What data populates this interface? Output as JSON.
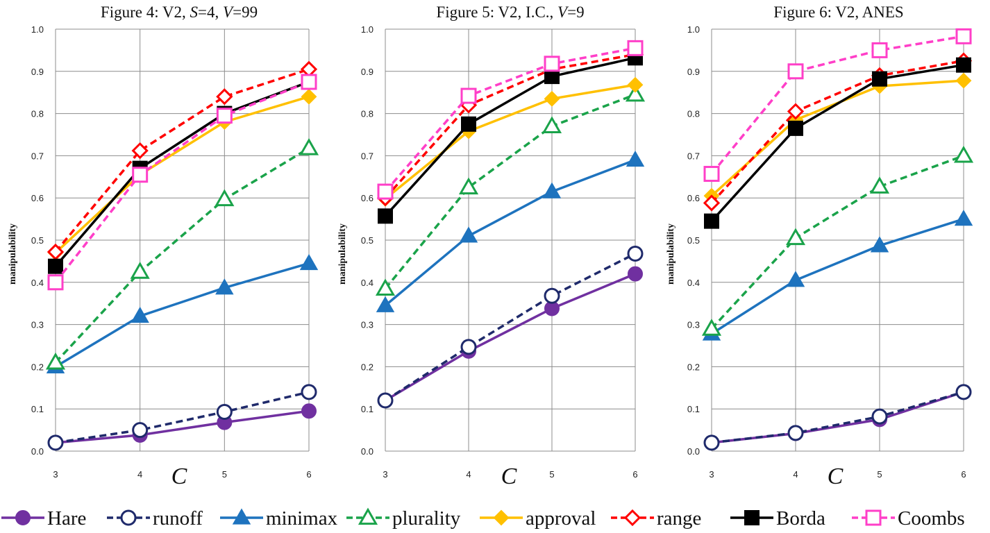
{
  "colors": {
    "Hare": "#7030A0",
    "runoff": "#1F2A6B",
    "minimax": "#1E73BE",
    "plurality": "#1AA34A",
    "approval": "#FFC000",
    "range": "#FF0000",
    "Borda": "#000000",
    "Coombs": "#FF3FC8"
  },
  "chart_data": [
    {
      "type": "line",
      "title": "Figure 4: V2, S=4, V=99",
      "title_parts": [
        "Figure 4: V2, ",
        "S",
        "=4, ",
        "V",
        "=99"
      ],
      "xlabel": "C",
      "ylabel": "manipulability",
      "x": [
        3,
        4,
        5,
        6
      ],
      "x_tick_labels": [
        "3",
        "4",
        "5",
        "6"
      ],
      "y_tick_labels": [
        "0.0",
        "0.1",
        "0.2",
        "0.3",
        "0.4",
        "0.5",
        "0.6",
        "0.7",
        "0.8",
        "0.9",
        "1.0"
      ],
      "ylim": [
        0,
        1
      ],
      "grid": true,
      "series": [
        {
          "name": "Hare",
          "values": [
            0.02,
            0.038,
            0.068,
            0.095
          ]
        },
        {
          "name": "runoff",
          "values": [
            0.02,
            0.05,
            0.093,
            0.14
          ]
        },
        {
          "name": "minimax",
          "values": [
            0.2,
            0.32,
            0.387,
            0.445
          ]
        },
        {
          "name": "plurality",
          "values": [
            0.21,
            0.425,
            0.597,
            0.718
          ]
        },
        {
          "name": "approval",
          "values": [
            0.47,
            0.655,
            0.78,
            0.84
          ]
        },
        {
          "name": "range",
          "values": [
            0.472,
            0.712,
            0.84,
            0.905
          ]
        },
        {
          "name": "Borda",
          "values": [
            0.438,
            0.67,
            0.8,
            0.875
          ]
        },
        {
          "name": "Coombs",
          "values": [
            0.4,
            0.655,
            0.795,
            0.875
          ]
        }
      ]
    },
    {
      "type": "line",
      "title": "Figure 5: V2, I.C., V=9",
      "title_parts": [
        "Figure 5: V2, I.C., ",
        "V",
        "=9"
      ],
      "xlabel": "C",
      "ylabel": "manipulability",
      "x": [
        3,
        4,
        5,
        6
      ],
      "x_tick_labels": [
        "3",
        "4",
        "5",
        "6"
      ],
      "y_tick_labels": [
        "0.0",
        "0.1",
        "0.2",
        "0.3",
        "0.4",
        "0.5",
        "0.6",
        "0.7",
        "0.8",
        "0.9",
        "1.0"
      ],
      "ylim": [
        0,
        1
      ],
      "grid": true,
      "series": [
        {
          "name": "Hare",
          "values": [
            0.12,
            0.237,
            0.338,
            0.42
          ]
        },
        {
          "name": "runoff",
          "values": [
            0.12,
            0.247,
            0.368,
            0.468
          ]
        },
        {
          "name": "minimax",
          "values": [
            0.345,
            0.51,
            0.615,
            0.69
          ]
        },
        {
          "name": "plurality",
          "values": [
            0.385,
            0.625,
            0.77,
            0.845
          ]
        },
        {
          "name": "approval",
          "values": [
            0.598,
            0.758,
            0.835,
            0.868
          ]
        },
        {
          "name": "range",
          "values": [
            0.6,
            0.82,
            0.905,
            0.94
          ]
        },
        {
          "name": "Borda",
          "values": [
            0.557,
            0.775,
            0.888,
            0.932
          ]
        },
        {
          "name": "Coombs",
          "values": [
            0.615,
            0.842,
            0.918,
            0.955
          ]
        }
      ]
    },
    {
      "type": "line",
      "title": "Figure 6: V2, ANES",
      "title_parts": [
        "Figure 6: V2, ANES"
      ],
      "xlabel": "C",
      "ylabel": "manipulability",
      "x": [
        3,
        4,
        5,
        6
      ],
      "x_tick_labels": [
        "3",
        "4",
        "5",
        "6"
      ],
      "y_tick_labels": [
        "0.0",
        "0.1",
        "0.2",
        "0.3",
        "0.4",
        "0.5",
        "0.6",
        "0.7",
        "0.8",
        "0.9",
        "1.0"
      ],
      "ylim": [
        0,
        1
      ],
      "grid": true,
      "series": [
        {
          "name": "Hare",
          "values": [
            0.02,
            0.042,
            0.075,
            0.14
          ]
        },
        {
          "name": "runoff",
          "values": [
            0.02,
            0.043,
            0.082,
            0.14
          ]
        },
        {
          "name": "minimax",
          "values": [
            0.278,
            0.405,
            0.487,
            0.55
          ]
        },
        {
          "name": "plurality",
          "values": [
            0.29,
            0.505,
            0.627,
            0.7
          ]
        },
        {
          "name": "approval",
          "values": [
            0.605,
            0.785,
            0.865,
            0.878
          ]
        },
        {
          "name": "range",
          "values": [
            0.588,
            0.805,
            0.89,
            0.925
          ]
        },
        {
          "name": "Borda",
          "values": [
            0.545,
            0.765,
            0.882,
            0.915
          ]
        },
        {
          "name": "Coombs",
          "values": [
            0.657,
            0.9,
            0.95,
            0.983
          ]
        }
      ]
    }
  ],
  "legend": {
    "position": "bottom",
    "items": [
      "Hare",
      "runoff",
      "minimax",
      "plurality",
      "approval",
      "range",
      "Borda",
      "Coombs"
    ]
  }
}
